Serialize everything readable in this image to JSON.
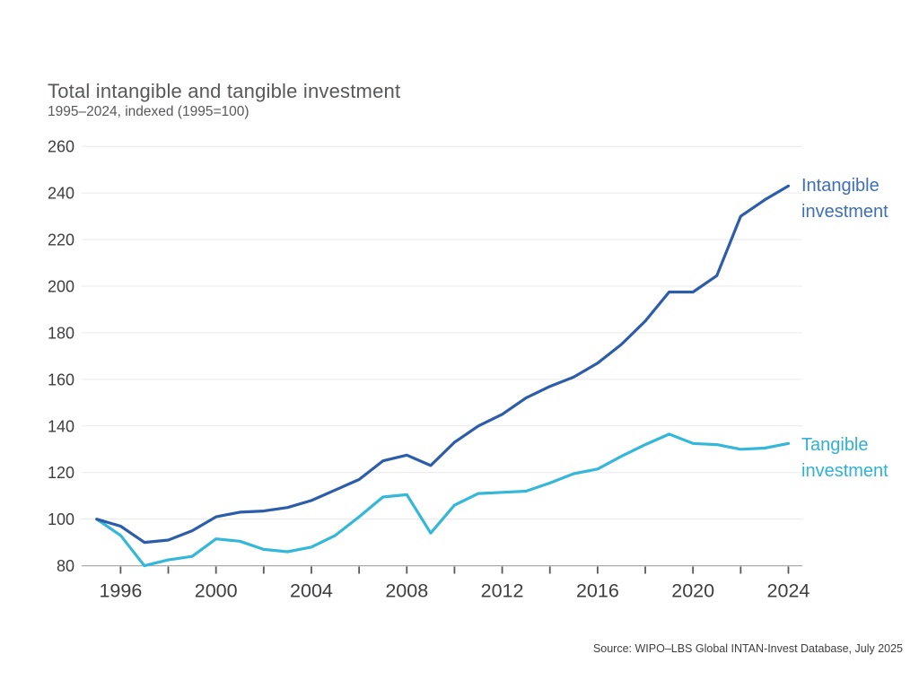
{
  "header": {
    "title": "Total intangible and tangible investment",
    "subtitle": "1995–2024, indexed (1995=100)"
  },
  "source_note": "Source: WIPO–LBS Global INTAN-Invest Database, July 2025",
  "chart_data": {
    "type": "line",
    "title": "Total intangible and tangible investment",
    "subtitle": "1995–2024, indexed (1995=100)",
    "x": [
      1995,
      1996,
      1997,
      1998,
      1999,
      2000,
      2001,
      2002,
      2003,
      2004,
      2005,
      2006,
      2007,
      2008,
      2009,
      2010,
      2011,
      2012,
      2013,
      2014,
      2015,
      2016,
      2017,
      2018,
      2019,
      2020,
      2021,
      2022,
      2023,
      2024
    ],
    "series": [
      {
        "name": "Intangible investment",
        "color": "#2D5DA9",
        "label_color": "#3E6FB9",
        "values": [
          100,
          97,
          90,
          91,
          95,
          101,
          103,
          103.5,
          105,
          108,
          112.5,
          117,
          125,
          127.5,
          123,
          133,
          140,
          145,
          152,
          157,
          161,
          167,
          175,
          185,
          197.5,
          197.5,
          204.5,
          230,
          237,
          243
        ]
      },
      {
        "name": "Tangible investment",
        "color": "#35B7D9",
        "label_color": "#2FB2D5",
        "values": [
          100,
          93,
          80,
          82.5,
          84,
          91.5,
          90.5,
          87,
          86,
          88,
          93,
          101,
          109.5,
          110.5,
          94,
          106,
          111,
          111.5,
          112,
          115.5,
          119.5,
          121.5,
          127,
          132,
          136.5,
          132.5,
          132,
          130,
          130.5,
          132.5
        ]
      }
    ],
    "ylim": [
      80,
      260
    ],
    "yticks": [
      80,
      100,
      120,
      140,
      160,
      180,
      200,
      220,
      240,
      260
    ],
    "xtick_labels": [
      1996,
      2000,
      2004,
      2008,
      2012,
      2016,
      2020,
      2024
    ],
    "xtick_minor_step": 2,
    "grid": "horizontal",
    "legend_position": "right of line ends"
  }
}
